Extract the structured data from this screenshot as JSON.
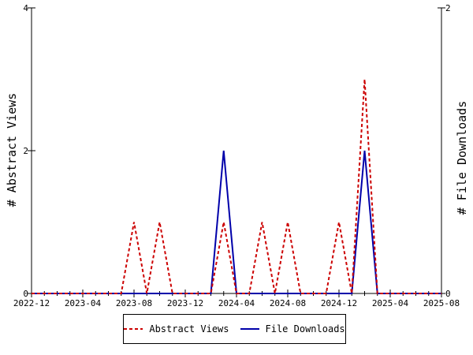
{
  "chart_data": {
    "type": "line",
    "x": [
      "2022-12",
      "2023-01",
      "2023-02",
      "2023-03",
      "2023-04",
      "2023-05",
      "2023-06",
      "2023-07",
      "2023-08",
      "2023-09",
      "2023-10",
      "2023-11",
      "2023-12",
      "2024-01",
      "2024-02",
      "2024-03",
      "2024-04",
      "2024-05",
      "2024-06",
      "2024-07",
      "2024-08",
      "2024-09",
      "2024-10",
      "2024-11",
      "2024-12",
      "2025-01",
      "2025-02",
      "2025-03",
      "2025-04",
      "2025-05",
      "2025-06",
      "2025-07",
      "2025-08"
    ],
    "x_ticks": [
      "2022-12",
      "2023-04",
      "2023-08",
      "2023-12",
      "2024-04",
      "2024-08",
      "2024-12",
      "2025-04",
      "2025-08"
    ],
    "series": [
      {
        "name": "Abstract Views",
        "axis": "left",
        "color": "#cc0000",
        "dash": "dashed",
        "values": [
          0,
          0,
          0,
          0,
          0,
          0,
          0,
          0,
          1,
          0,
          1,
          0,
          0,
          0,
          0,
          1,
          0,
          0,
          1,
          0,
          1,
          0,
          0,
          0,
          1,
          0,
          3,
          0,
          0,
          0,
          0,
          0,
          0
        ]
      },
      {
        "name": "File Downloads",
        "axis": "right",
        "color": "#0000aa",
        "dash": "solid",
        "values": [
          0,
          0,
          0,
          0,
          0,
          0,
          0,
          0,
          0,
          0,
          0,
          0,
          0,
          0,
          0,
          1,
          0,
          0,
          0,
          0,
          0,
          0,
          0,
          0,
          0,
          0,
          1,
          0,
          0,
          0,
          0,
          0,
          0
        ]
      }
    ],
    "ylabel": "# Abstract Views",
    "y2label": "# File Downloads",
    "ylim": [
      0,
      4
    ],
    "y2lim": [
      0,
      2
    ],
    "y_ticks": [
      "0",
      "2",
      "4"
    ],
    "y2_ticks": [
      "0",
      "2"
    ],
    "grid": false,
    "legend_position": "bottom"
  }
}
